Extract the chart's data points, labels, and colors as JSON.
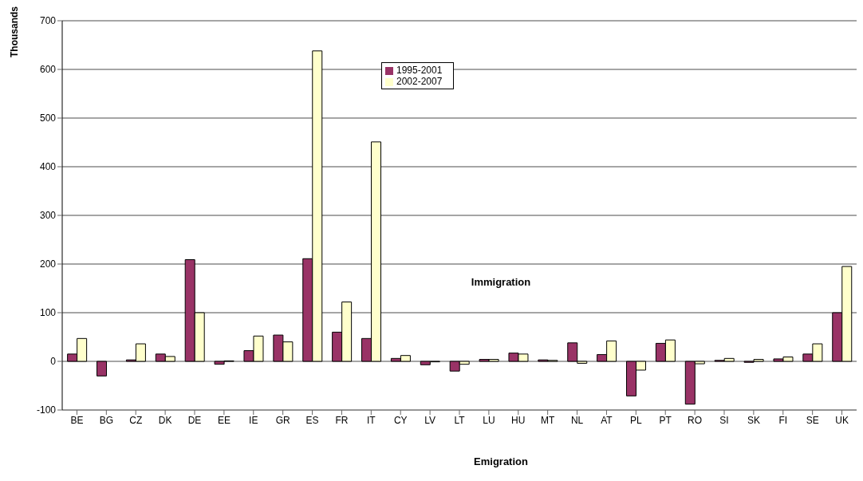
{
  "chart_data": {
    "type": "bar",
    "ylabel": "Thousands",
    "categories": [
      "BE",
      "BG",
      "CZ",
      "DK",
      "DE",
      "EE",
      "IE",
      "GR",
      "ES",
      "FR",
      "IT",
      "CY",
      "LV",
      "LT",
      "LU",
      "HU",
      "MT",
      "NL",
      "AT",
      "PL",
      "PT",
      "RO",
      "SI",
      "SK",
      "FI",
      "SE",
      "UK"
    ],
    "series": [
      {
        "name": "1995-2001",
        "color": "#993366",
        "values": [
          15,
          -30,
          3,
          15,
          209,
          -6,
          22,
          54,
          211,
          60,
          47,
          6,
          -7,
          -20,
          4,
          17,
          3,
          38,
          14,
          -71,
          37,
          -88,
          2,
          -2,
          5,
          15,
          100
        ]
      },
      {
        "name": "2002-2007",
        "color": "#ffffcc",
        "values": [
          47,
          0,
          36,
          10,
          100,
          1,
          52,
          40,
          638,
          122,
          451,
          12,
          -1,
          -6,
          4,
          15,
          2,
          -4,
          42,
          -18,
          44,
          -5,
          6,
          4,
          9,
          36,
          195
        ]
      }
    ],
    "ylim": [
      -100,
      700
    ],
    "yticks": [
      -100,
      0,
      100,
      200,
      300,
      400,
      500,
      600,
      700
    ],
    "grid": "y",
    "legend": "top",
    "annotations": [
      "Immigration",
      "Emigration"
    ]
  }
}
